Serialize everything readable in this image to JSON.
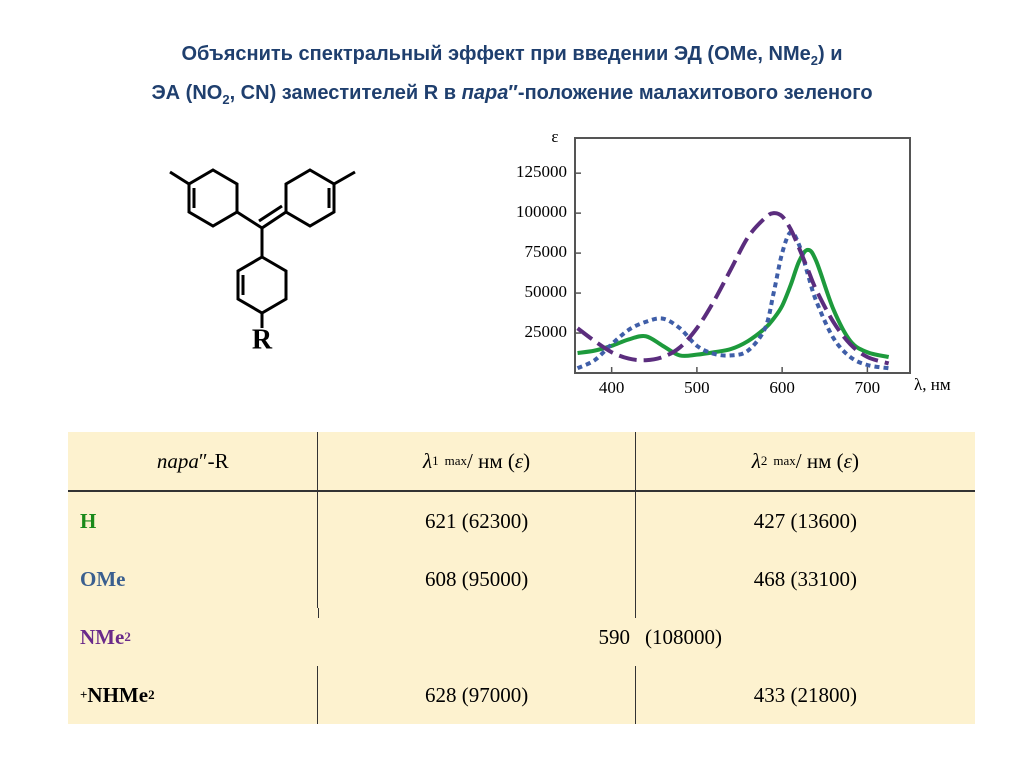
{
  "title": {
    "line1": [
      "Объяснить спектральный эффект при введении ЭД (OMe, NMe",
      "2",
      ") и"
    ],
    "line2": [
      "ЭА (NO",
      "2",
      ", CN) заместителей R в ",
      "пара",
      "″-положение малахитового зеленого"
    ]
  },
  "structure": {
    "substituent": "R"
  },
  "chart_data": {
    "type": "line",
    "ylabel": "ε",
    "xlabel": "λ, нм",
    "x": [
      360,
      380,
      400,
      420,
      440,
      460,
      480,
      500,
      520,
      540,
      560,
      580,
      590,
      600,
      610,
      620,
      630,
      640,
      660,
      680,
      700,
      725
    ],
    "series": [
      {
        "name": "H",
        "color": "#1d9a3c",
        "dash": "none",
        "values": [
          12500,
          14000,
          17000,
          21000,
          23000,
          17000,
          11000,
          11500,
          13000,
          15000,
          20000,
          28000,
          34000,
          42000,
          55000,
          70000,
          77000,
          70000,
          40000,
          20000,
          13000,
          10000
        ]
      },
      {
        "name": "OMe",
        "color": "#3f5ea8",
        "dash": "5 4",
        "values": [
          3000,
          8000,
          18000,
          27000,
          32000,
          34000,
          28000,
          17000,
          12000,
          11000,
          14000,
          28000,
          50000,
          75000,
          88000,
          80000,
          62000,
          45000,
          22000,
          10000,
          5000,
          3000
        ]
      },
      {
        "name": "NMe2",
        "color": "#5b2d7e",
        "dash": "18 7",
        "values": [
          28000,
          20000,
          13000,
          9000,
          8000,
          10000,
          16000,
          28000,
          45000,
          65000,
          85000,
          97000,
          100000,
          98000,
          90000,
          78000,
          65000,
          52000,
          32000,
          18000,
          10000,
          6000
        ]
      }
    ],
    "xlim": [
      357,
      750
    ],
    "ylim": [
      0,
      147000
    ],
    "xticks": [
      400,
      500,
      600,
      700
    ],
    "yticks": [
      25000,
      50000,
      75000,
      100000,
      125000
    ]
  },
  "table": {
    "header": [
      [
        "пара",
        "″-R"
      ],
      [
        "λ",
        "1",
        "max",
        " / нм (",
        "ε",
        ")"
      ],
      [
        "λ",
        "2",
        "max",
        " / нм (",
        "ε",
        ")"
      ]
    ],
    "rows": [
      {
        "label": [
          "H"
        ],
        "c1": "621  (62300)",
        "c2": "427  (13600)"
      },
      {
        "label": [
          "OMe"
        ],
        "c1": "608  (95000)",
        "c2": "468  (33100)"
      },
      {
        "label": [
          "NMe",
          "2"
        ],
        "both": [
          "590",
          "(108000)"
        ]
      },
      {
        "label": [
          "+",
          "NHMe",
          "2"
        ],
        "c1": "628  (97000)",
        "c2": "433  (21800)"
      }
    ]
  }
}
